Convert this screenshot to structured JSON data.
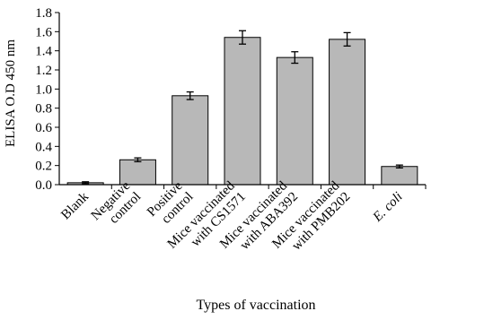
{
  "chart_data": {
    "type": "bar",
    "ylabel": "ELISA O.D 450 nm",
    "xlabel": "Types of vaccination",
    "ylim": [
      0,
      1.8
    ],
    "yticks": [
      "0.0",
      "0.2",
      "0.4",
      "0.6",
      "0.8",
      "1.0",
      "1.2",
      "1.4",
      "1.6",
      "1.8"
    ],
    "categories": [
      {
        "lines": [
          "Blank"
        ],
        "italic": false
      },
      {
        "lines": [
          "Negative",
          "control"
        ],
        "italic": false
      },
      {
        "lines": [
          "Positive",
          "control"
        ],
        "italic": false
      },
      {
        "lines": [
          "Mice vaccinated",
          "with CS1571"
        ],
        "italic": false
      },
      {
        "lines": [
          "Mice vaccinated",
          "with ABA392"
        ],
        "italic": false
      },
      {
        "lines": [
          "Mice vaccinated",
          "with PMB202"
        ],
        "italic": false
      },
      {
        "lines": [
          "E. coli"
        ],
        "italic": true
      }
    ],
    "values": [
      0.02,
      0.26,
      0.93,
      1.54,
      1.33,
      1.52,
      0.19
    ],
    "errors": [
      0.01,
      0.02,
      0.04,
      0.07,
      0.06,
      0.07,
      0.015
    ],
    "bar_color": "#b8b8b8",
    "edge_color": "#000000",
    "grid": false
  }
}
